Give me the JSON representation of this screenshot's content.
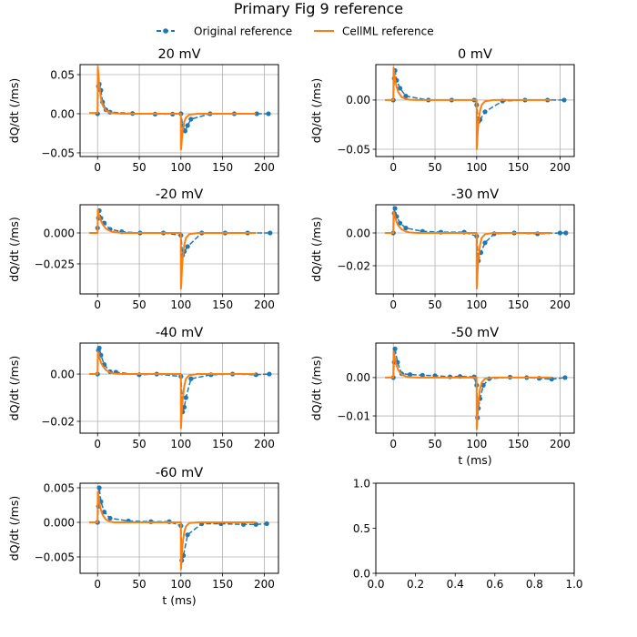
{
  "figure": {
    "suptitle": "Primary Fig 9 reference",
    "legend": {
      "placement": "top-center",
      "entries": [
        {
          "label": "Original reference",
          "color": "#1f77b4",
          "style": "dashed-with-markers"
        },
        {
          "label": "CellML reference",
          "color": "#ff7f0e",
          "style": "solid"
        }
      ]
    }
  },
  "chart_data": [
    {
      "type": "line",
      "title": "20 mV",
      "xlabel": "",
      "ylabel": "dQ/dt (/ms)",
      "xlim": [
        -21,
        217
      ],
      "ylim": [
        -0.0547,
        0.0628
      ],
      "xticks": [
        0,
        50,
        100,
        150,
        200
      ],
      "xtick_labels": [
        "0",
        "50",
        "100",
        "150",
        "200"
      ],
      "yticks": [
        -0.05,
        0,
        0.05
      ],
      "ytick_labels": [
        "−0.05",
        "0.00",
        "0.05"
      ],
      "grid": true,
      "series": [
        {
          "name": "Original reference",
          "x": [
            0,
            1,
            2,
            4,
            6,
            10,
            15,
            42,
            69,
            90,
            100,
            102,
            105,
            108,
            112,
            135,
            164,
            191,
            205
          ],
          "y": [
            0,
            0.035,
            0.038,
            0.03,
            0.015,
            0.005,
            0.002,
            0.0003,
            -0.0005,
            -0.0005,
            0,
            -0.015,
            -0.022,
            -0.015,
            -0.007,
            0,
            0,
            0,
            0
          ]
        },
        {
          "name": "CellML reference",
          "x": [
            -10,
            0,
            0.3,
            1,
            2,
            4,
            6,
            10,
            15,
            20,
            30,
            99.9,
            100,
            100.5,
            101,
            102,
            104,
            106,
            110,
            120,
            190
          ],
          "y": [
            0.001,
            0.001,
            0.06,
            0.05,
            0.036,
            0.02,
            0.011,
            0.004,
            0.0015,
            0.0005,
            0,
            0,
            -0.046,
            -0.042,
            -0.034,
            -0.022,
            -0.01,
            -0.005,
            -0.0012,
            0,
            0
          ]
        }
      ]
    },
    {
      "type": "line",
      "title": "0 mV",
      "xlabel": "",
      "ylabel": "dQ/dt (/ms)",
      "xlim": [
        -21,
        217
      ],
      "ylim": [
        -0.0574,
        0.036
      ],
      "xticks": [
        0,
        50,
        100,
        150,
        200
      ],
      "xtick_labels": [
        "0",
        "50",
        "100",
        "150",
        "200"
      ],
      "yticks": [
        -0.05,
        0
      ],
      "ytick_labels": [
        "−0.05",
        "0.00"
      ],
      "grid": true,
      "series": [
        {
          "name": "Original reference",
          "x": [
            0,
            1,
            2,
            4,
            8,
            15,
            42,
            70,
            97,
            100,
            102,
            104,
            110,
            131,
            158,
            185,
            205
          ],
          "y": [
            0,
            0.022,
            0.03,
            0.02,
            0.012,
            0.004,
            0,
            0,
            0,
            -0.005,
            -0.022,
            -0.02,
            -0.012,
            -0.001,
            0,
            0,
            0
          ]
        },
        {
          "name": "CellML reference",
          "x": [
            -10,
            0,
            0.3,
            1,
            2,
            4,
            6,
            10,
            15,
            20,
            30,
            99.9,
            100,
            100.5,
            101,
            102,
            104,
            106,
            110,
            120,
            190
          ],
          "y": [
            0,
            0,
            0.033,
            0.028,
            0.021,
            0.013,
            0.008,
            0.003,
            0.001,
            0.0003,
            0,
            0,
            -0.05,
            -0.045,
            -0.036,
            -0.024,
            -0.011,
            -0.005,
            -0.0012,
            0,
            0
          ]
        }
      ]
    },
    {
      "type": "line",
      "title": "-20 mV",
      "xlabel": "",
      "ylabel": "dQ/dt (/ms)",
      "xlim": [
        -21,
        217
      ],
      "ylim": [
        -0.0493,
        0.0228
      ],
      "xticks": [
        0,
        50,
        100,
        150,
        200
      ],
      "xtick_labels": [
        "0",
        "50",
        "100",
        "150",
        "200"
      ],
      "yticks": [
        -0.025,
        0
      ],
      "ytick_labels": [
        "−0.025",
        "0.000"
      ],
      "grid": true,
      "series": [
        {
          "name": "Original reference",
          "x": [
            0,
            1,
            2,
            4,
            8,
            15,
            29,
            51,
            79,
            100,
            102,
            104,
            108,
            125,
            153,
            180,
            207
          ],
          "y": [
            0.004,
            0.012,
            0.018,
            0.012,
            0.008,
            0.003,
            0.001,
            0,
            0,
            -0.002,
            -0.018,
            -0.015,
            -0.011,
            0,
            0,
            0,
            0
          ]
        },
        {
          "name": "CellML reference",
          "x": [
            -10,
            0,
            0.3,
            1,
            2,
            4,
            6,
            10,
            15,
            20,
            30,
            99.9,
            100,
            100.5,
            101,
            102,
            104,
            106,
            110,
            120,
            190
          ],
          "y": [
            0,
            0,
            0.019,
            0.017,
            0.014,
            0.01,
            0.007,
            0.0035,
            0.0015,
            0.0006,
            0,
            0,
            -0.045,
            -0.04,
            -0.032,
            -0.021,
            -0.01,
            -0.004,
            -0.001,
            0,
            0
          ]
        }
      ]
    },
    {
      "type": "line",
      "title": "-30 mV",
      "xlabel": "",
      "ylabel": "dQ/dt (/ms)",
      "xlim": [
        -21,
        217
      ],
      "ylim": [
        -0.0372,
        0.0172
      ],
      "xticks": [
        0,
        50,
        100,
        150,
        200
      ],
      "xtick_labels": [
        "0",
        "50",
        "100",
        "150",
        "200"
      ],
      "yticks": [
        -0.02,
        0
      ],
      "ytick_labels": [
        "−0.02",
        "0.00"
      ],
      "grid": true,
      "series": [
        {
          "name": "Original reference",
          "x": [
            0,
            1,
            2,
            4,
            8,
            15,
            35,
            57,
            85,
            100,
            102,
            105,
            110,
            121,
            145,
            173,
            200,
            207
          ],
          "y": [
            0,
            0.012,
            0.015,
            0.01,
            0.006,
            0.003,
            0.001,
            0.0005,
            0.0005,
            -0.002,
            -0.017,
            -0.012,
            -0.006,
            -0.0005,
            0,
            -0.0005,
            0,
            0
          ]
        },
        {
          "name": "CellML reference",
          "x": [
            -10,
            0,
            0.3,
            1,
            2,
            4,
            6,
            10,
            15,
            20,
            30,
            99.9,
            100,
            100.5,
            101,
            102,
            104,
            106,
            110,
            120,
            190
          ],
          "y": [
            0,
            0,
            0.013,
            0.012,
            0.0095,
            0.0065,
            0.0045,
            0.0022,
            0.0009,
            0.0003,
            0,
            0,
            -0.034,
            -0.03,
            -0.024,
            -0.016,
            -0.0075,
            -0.003,
            -0.0008,
            0,
            0
          ]
        }
      ]
    },
    {
      "type": "line",
      "title": "-40 mV",
      "xlabel": "",
      "ylabel": "dQ/dt (/ms)",
      "xlim": [
        -21,
        217
      ],
      "ylim": [
        -0.025,
        0.0131
      ],
      "xticks": [
        0,
        50,
        100,
        150,
        200
      ],
      "xtick_labels": [
        "0",
        "50",
        "100",
        "150",
        "200"
      ],
      "yticks": [
        -0.02,
        0
      ],
      "ytick_labels": [
        "−0.02",
        "0.00"
      ],
      "grid": true,
      "series": [
        {
          "name": "Original reference",
          "x": [
            0,
            1,
            2,
            4,
            8,
            15,
            22,
            50,
            71,
            100,
            102,
            104,
            106,
            112,
            136,
            162,
            190,
            206
          ],
          "y": [
            0,
            0.01,
            0.011,
            0.008,
            0.004,
            0.001,
            0.0008,
            -0.0003,
            0,
            -0.001,
            -0.016,
            -0.014,
            -0.01,
            -0.002,
            -0.0003,
            0,
            -0.0003,
            0
          ]
        },
        {
          "name": "CellML reference",
          "x": [
            -10,
            0,
            0.3,
            1,
            2,
            4,
            6,
            10,
            15,
            20,
            30,
            99.9,
            100,
            100.5,
            101,
            102,
            104,
            106,
            110,
            120,
            190
          ],
          "y": [
            0,
            0,
            0.0095,
            0.0088,
            0.0072,
            0.005,
            0.0035,
            0.0017,
            0.0007,
            0.0002,
            0,
            0,
            -0.023,
            -0.02,
            -0.016,
            -0.011,
            -0.005,
            -0.002,
            -0.0005,
            0,
            0
          ]
        }
      ]
    },
    {
      "type": "line",
      "title": "-50 mV",
      "xlabel": "t (ms)",
      "ylabel": "dQ/dt (/ms)",
      "xlim": [
        -21,
        217
      ],
      "ylim": [
        -0.0145,
        0.009
      ],
      "xticks": [
        0,
        50,
        100,
        150,
        200
      ],
      "xtick_labels": [
        "0",
        "50",
        "100",
        "150",
        "200"
      ],
      "yticks": [
        -0.01,
        0
      ],
      "ytick_labels": [
        "−0.01",
        "0.00"
      ],
      "grid": true,
      "series": [
        {
          "name": "Original reference",
          "x": [
            0,
            1,
            2,
            5,
            10,
            20,
            35,
            50,
            68,
            80,
            97,
            100,
            101,
            102,
            104,
            108,
            115,
            140,
            160,
            175,
            190,
            206
          ],
          "y": [
            0,
            0.004,
            0.0075,
            0.004,
            0.001,
            0.0008,
            0.0006,
            0.0005,
            0.0002,
            0.0003,
            0.0002,
            -0.002,
            -0.0105,
            -0.008,
            -0.0055,
            -0.002,
            -0.0003,
            0.0001,
            0,
            -0.0002,
            -0.0004,
            0
          ]
        },
        {
          "name": "CellML reference",
          "x": [
            -10,
            0,
            0.3,
            1,
            2,
            4,
            6,
            10,
            15,
            20,
            30,
            99.9,
            100,
            100.5,
            101,
            102,
            104,
            106,
            110,
            120,
            190
          ],
          "y": [
            0,
            0,
            0.0068,
            0.006,
            0.0048,
            0.003,
            0.0019,
            0.0008,
            0.0003,
            0.0001,
            0,
            0,
            -0.0135,
            -0.012,
            -0.0095,
            -0.0065,
            -0.003,
            -0.0013,
            -0.0003,
            0,
            0
          ]
        }
      ]
    },
    {
      "type": "line",
      "title": "-60 mV",
      "xlabel": "t (ms)",
      "ylabel": "dQ/dt (/ms)",
      "xlim": [
        -21,
        217
      ],
      "ylim": [
        -0.00737,
        0.00566
      ],
      "xticks": [
        0,
        50,
        100,
        150,
        200
      ],
      "xtick_labels": [
        "0",
        "50",
        "100",
        "150",
        "200"
      ],
      "yticks": [
        -0.005,
        0,
        0.005
      ],
      "ytick_labels": [
        "−0.005",
        "0.000",
        "0.005"
      ],
      "grid": true,
      "series": [
        {
          "name": "Original reference",
          "x": [
            0,
            1,
            2,
            4,
            8,
            15,
            37,
            64,
            86,
            100,
            101,
            103,
            108,
            125,
            148,
            175,
            190,
            203
          ],
          "y": [
            0,
            0.0023,
            0.005,
            0.003,
            0.0015,
            0.0006,
            0.0002,
            0.0001,
            0.0001,
            -0.0005,
            -0.0055,
            -0.0048,
            -0.0018,
            -0.0002,
            -0.0002,
            -0.0003,
            -0.0003,
            -0.0002
          ]
        },
        {
          "name": "CellML reference",
          "x": [
            -10,
            0,
            0.3,
            1,
            2,
            4,
            6,
            10,
            15,
            20,
            30,
            99.9,
            100,
            100.5,
            101,
            102,
            104,
            106,
            110,
            120,
            190
          ],
          "y": [
            0,
            0,
            0.0044,
            0.0039,
            0.003,
            0.0018,
            0.0011,
            0.0004,
            0.0001,
            0,
            0,
            0,
            -0.0068,
            -0.006,
            -0.0047,
            -0.0031,
            -0.0014,
            -0.0006,
            -0.0001,
            0,
            0
          ]
        }
      ]
    },
    {
      "type": "line",
      "title": "",
      "xlabel": "",
      "ylabel": "",
      "xlim": [
        0,
        1
      ],
      "ylim": [
        0,
        1
      ],
      "xticks": [
        0,
        0.2,
        0.4,
        0.6,
        0.8,
        1.0
      ],
      "xtick_labels": [
        "0.0",
        "0.2",
        "0.4",
        "0.6",
        "0.8",
        "1.0"
      ],
      "yticks": [
        0,
        0.5,
        1.0
      ],
      "ytick_labels": [
        "0.0",
        "0.5",
        "1.0"
      ],
      "grid": false,
      "series": []
    }
  ]
}
